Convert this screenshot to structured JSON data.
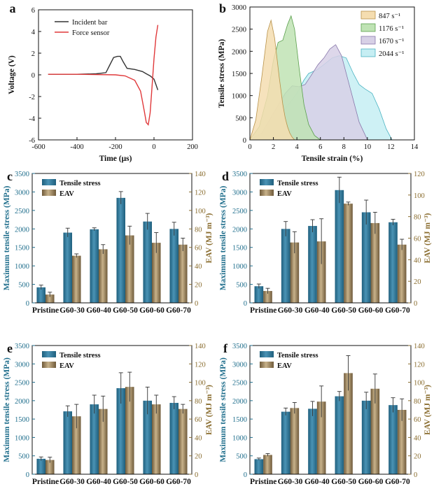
{
  "chart_data": [
    {
      "panel": "a",
      "type": "line",
      "xlabel": "Time (μs)",
      "ylabel": "Voltage (V)",
      "xlim": [
        -600,
        200
      ],
      "ylim": [
        -6,
        6
      ],
      "xticks": [
        "-600",
        "-400",
        "-200",
        "0",
        "200"
      ],
      "yticks": [
        "-6",
        "-4",
        "-2",
        "0",
        "2",
        "4",
        "6"
      ],
      "series": [
        {
          "name": "Incident bar",
          "color": "#333333",
          "x": [
            -550,
            -400,
            -300,
            -250,
            -230,
            -210,
            -190,
            -175,
            -160,
            -140,
            -100,
            -80,
            -60,
            -40,
            -20,
            0,
            10,
            20
          ],
          "y": [
            0.05,
            0.05,
            0.1,
            0.2,
            0.9,
            1.6,
            1.7,
            1.7,
            1.2,
            0.6,
            0.5,
            0.4,
            0.3,
            0.1,
            -0.1,
            -0.4,
            -0.9,
            -1.4
          ]
        },
        {
          "name": "Force sensor",
          "color": "#e0383a",
          "x": [
            -550,
            -400,
            -200,
            -150,
            -100,
            -70,
            -50,
            -40,
            -30,
            -20,
            -10,
            0,
            10,
            20
          ],
          "y": [
            0.05,
            0.05,
            0.0,
            -0.1,
            -0.5,
            -1.5,
            -3.4,
            -4.4,
            -4.6,
            -3.5,
            -1.0,
            1.5,
            3.5,
            4.6
          ]
        }
      ]
    },
    {
      "panel": "b",
      "type": "area",
      "xlabel": "Tensile strain (%)",
      "ylabel": "Tensile stress (MPa)",
      "xlim": [
        0,
        14
      ],
      "ylim": [
        0,
        3000
      ],
      "xticks": [
        "0",
        "2",
        "4",
        "6",
        "8",
        "10",
        "12",
        "14"
      ],
      "yticks": [
        "0",
        "500",
        "1000",
        "1500",
        "2000",
        "2500",
        "3000"
      ],
      "series": [
        {
          "name": "847",
          "unit": "s⁻¹",
          "fill": "#f5ddb0",
          "stroke": "#b8924a",
          "x": [
            0,
            0.5,
            1.0,
            1.5,
            1.8,
            2.1,
            2.5,
            2.8,
            3.0,
            3.2,
            3.4,
            3.6,
            3.8
          ],
          "y": [
            0,
            450,
            1400,
            2450,
            2700,
            2300,
            1400,
            800,
            500,
            300,
            150,
            60,
            0
          ]
        },
        {
          "name": "1176",
          "unit": "s⁻¹",
          "fill": "#bfe3b4",
          "stroke": "#5a9f4c",
          "x": [
            0,
            0.8,
            1.5,
            2.0,
            2.4,
            2.8,
            3.2,
            3.5,
            3.8,
            4.2,
            4.6,
            5.0,
            5.5,
            6.0
          ],
          "y": [
            0,
            300,
            1000,
            1800,
            2200,
            2250,
            2600,
            2800,
            2500,
            1600,
            800,
            350,
            100,
            0
          ]
        },
        {
          "name": "1670",
          "unit": "s⁻¹",
          "fill": "#d7d0e6",
          "stroke": "#8877aa",
          "x": [
            0,
            1,
            2,
            3,
            3.6,
            4.2,
            4.7,
            5.2,
            5.8,
            6.3,
            6.8,
            7.3,
            7.8,
            8.3,
            8.8,
            9.3,
            10.0
          ],
          "y": [
            0,
            150,
            600,
            1050,
            1220,
            1200,
            1250,
            1450,
            1700,
            1850,
            2050,
            2150,
            1900,
            1400,
            900,
            400,
            0
          ]
        },
        {
          "name": "2044",
          "unit": "s⁻¹",
          "fill": "#c6eef3",
          "stroke": "#4ab3c2",
          "x": [
            0,
            1,
            2,
            3,
            4,
            4.6,
            5,
            5.7,
            6.3,
            7,
            7.6,
            8.2,
            8.8,
            9.3,
            9.8,
            10.4,
            11,
            11.6,
            12.1
          ],
          "y": [
            0,
            80,
            350,
            700,
            1050,
            1350,
            1500,
            1580,
            1700,
            1850,
            1900,
            1850,
            1500,
            1250,
            1150,
            1050,
            700,
            250,
            0
          ]
        }
      ]
    },
    {
      "panel": "c",
      "type": "bar",
      "categories": [
        "Pristine",
        "G60-30",
        "G60-40",
        "G60-50",
        "G60-60",
        "G60-70"
      ],
      "ylabel": "Maximum tensile stress (MPa)",
      "y2label": "EAV (MJ m⁻³)",
      "ylim": [
        0,
        3500
      ],
      "y2lim": [
        0,
        140
      ],
      "yticks": [
        "0",
        "500",
        "1000",
        "1500",
        "2000",
        "2500",
        "3000",
        "3500"
      ],
      "y2ticks": [
        "0",
        "20",
        "40",
        "60",
        "80",
        "100",
        "120",
        "140"
      ],
      "series": [
        {
          "name": "Tensile stress",
          "axis": "left",
          "values": [
            420,
            1900,
            1990,
            2840,
            2200,
            2000
          ],
          "errors": [
            60,
            120,
            40,
            170,
            220,
            180
          ]
        },
        {
          "name": "EAV",
          "axis": "right",
          "values": [
            9,
            51,
            58,
            73,
            65,
            63
          ],
          "errors": [
            2.5,
            2,
            5,
            10,
            11,
            7
          ]
        }
      ]
    },
    {
      "panel": "d",
      "type": "bar",
      "categories": [
        "Pristine",
        "G60-30",
        "G60-40",
        "G60-50",
        "G60-60",
        "G60-70"
      ],
      "ylabel": "Maximum tensile stress (MPa)",
      "y2label": "EAV (MJ m⁻³)",
      "ylim": [
        0,
        3500
      ],
      "y2lim": [
        0,
        120
      ],
      "yticks": [
        "0",
        "500",
        "1000",
        "1500",
        "2000",
        "2500",
        "3000",
        "3500"
      ],
      "y2ticks": [
        "0",
        "20",
        "40",
        "60",
        "80",
        "100",
        "120"
      ],
      "series": [
        {
          "name": "Tensile stress",
          "axis": "left",
          "values": [
            450,
            2000,
            2080,
            3050,
            2450,
            2180
          ],
          "errors": [
            60,
            200,
            170,
            350,
            330,
            80
          ]
        },
        {
          "name": "EAV",
          "axis": "right",
          "values": [
            11,
            56,
            57,
            92,
            74,
            54
          ],
          "errors": [
            2.5,
            10,
            21,
            1.5,
            10,
            5
          ]
        }
      ]
    },
    {
      "panel": "e",
      "type": "bar",
      "categories": [
        "Pristine",
        "G60-30",
        "G60-40",
        "G60-50",
        "G60-60",
        "G60-70"
      ],
      "ylabel": "Maximum tensile stress (MPa)",
      "y2label": "EAV (MJ m⁻³)",
      "ylim": [
        0,
        3500
      ],
      "y2lim": [
        0,
        140
      ],
      "yticks": [
        "0",
        "500",
        "1000",
        "1500",
        "2000",
        "2500",
        "3000",
        "3500"
      ],
      "y2ticks": [
        "0",
        "20",
        "40",
        "60",
        "80",
        "100",
        "120",
        "140"
      ],
      "series": [
        {
          "name": "Tensile stress",
          "axis": "left",
          "values": [
            420,
            1710,
            1900,
            2340,
            2000,
            1940
          ],
          "errors": [
            50,
            150,
            250,
            420,
            370,
            170
          ]
        },
        {
          "name": "EAV",
          "axis": "right",
          "values": [
            15.5,
            63,
            71,
            95,
            76,
            71
          ],
          "errors": [
            3,
            13,
            14,
            16,
            10,
            5
          ]
        }
      ]
    },
    {
      "panel": "f",
      "type": "bar",
      "categories": [
        "Pristine",
        "G60-30",
        "G60-40",
        "G60-50",
        "G60-60",
        "G60-70"
      ],
      "ylabel": "Maximum tensile stress (MPa)",
      "y2label": "EAV (MJ m⁻³)",
      "ylim": [
        0,
        3500
      ],
      "y2lim": [
        0,
        140
      ],
      "yticks": [
        "0",
        "500",
        "1000",
        "1500",
        "2000",
        "2500",
        "3000",
        "3500"
      ],
      "y2ticks": [
        "0",
        "20",
        "40",
        "60",
        "80",
        "100",
        "120",
        "140"
      ],
      "series": [
        {
          "name": "Tensile stress",
          "axis": "left",
          "values": [
            410,
            1700,
            1780,
            2120,
            2000,
            1880
          ],
          "errors": [
            30,
            100,
            200,
            130,
            230,
            200
          ]
        },
        {
          "name": "EAV",
          "axis": "right",
          "values": [
            21,
            72,
            79,
            110,
            93,
            70
          ],
          "errors": [
            1.5,
            6,
            17,
            19,
            16,
            12
          ]
        }
      ]
    }
  ],
  "colors": {
    "stress_bar": "#2b7393",
    "eav_bar": "#9c8561",
    "axis_blue": "#1f6e8c",
    "axis_gold": "#8a6d2f"
  }
}
